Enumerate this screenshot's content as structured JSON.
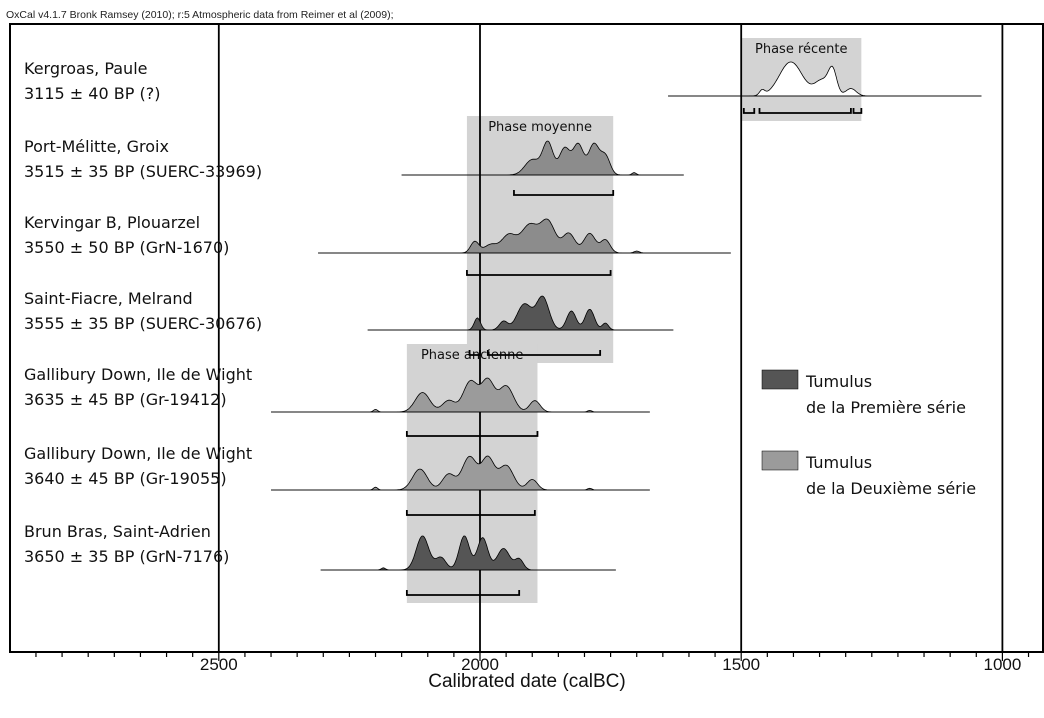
{
  "chart_data": {
    "type": "area",
    "credit": "OxCal v4.1.7 Bronk Ramsey (2010); r:5 Atmospheric data from Reimer et al (2009);",
    "xlabel": "Calibrated date (calBC)",
    "xlim": [
      2900,
      900
    ],
    "x_reversed": true,
    "major_ticks": [
      "2500",
      "2000",
      "1500",
      "1000"
    ],
    "minor_tick_step": 50,
    "grid": "vertical lines at major ticks",
    "phases": [
      {
        "label": "Phase récente",
        "from": 1500,
        "to": 1270
      },
      {
        "label": "Phase moyenne",
        "from": 2025,
        "to": 1745
      },
      {
        "label": "Phase ancienne",
        "from": 2140,
        "to": 1890
      }
    ],
    "legend": {
      "placement": "right",
      "items": [
        {
          "line1": "Tumulus",
          "line2": "de la Première série",
          "color": "#555555"
        },
        {
          "line1": "Tumulus",
          "line2": "de la Deuxième série",
          "color": "#9b9b9b"
        }
      ]
    },
    "series": [
      {
        "site": "Kergroas, Paule",
        "date": "3115 ± 40 BP (?)",
        "fill": "#ffffff",
        "range": [
          1640,
          1040
        ],
        "peaks": [
          [
            1460,
            5,
            0.15
          ],
          [
            1405,
            22,
            1.0
          ],
          [
            1345,
            14,
            0.45
          ],
          [
            1325,
            8,
            0.7
          ],
          [
            1290,
            10,
            0.22
          ]
        ],
        "hpd": [
          [
            1495,
            1475
          ],
          [
            1465,
            1290
          ],
          [
            1285,
            1270
          ]
        ]
      },
      {
        "site": "Port-Mélitte, Groix",
        "date": "3515 ± 35 BP (SUERC-33969)",
        "fill": "#8c8c8c",
        "range": [
          2150,
          1610
        ],
        "peaks": [
          [
            1900,
            14,
            0.45
          ],
          [
            1870,
            10,
            0.95
          ],
          [
            1838,
            10,
            0.78
          ],
          [
            1812,
            10,
            0.9
          ],
          [
            1782,
            10,
            0.9
          ],
          [
            1760,
            9,
            0.55
          ],
          [
            1705,
            4,
            0.07
          ]
        ],
        "hpd": [
          [
            1935,
            1745
          ]
        ]
      },
      {
        "site": "Kervingar B, Plouarzel",
        "date": "3550 ± 50 BP (GrN-1670)",
        "fill": "#8c8c8c",
        "range": [
          2310,
          1520
        ],
        "peaks": [
          [
            2010,
            8,
            0.35
          ],
          [
            1980,
            12,
            0.25
          ],
          [
            1945,
            14,
            0.55
          ],
          [
            1905,
            16,
            0.85
          ],
          [
            1870,
            14,
            0.95
          ],
          [
            1830,
            12,
            0.6
          ],
          [
            1790,
            11,
            0.6
          ],
          [
            1760,
            9,
            0.4
          ],
          [
            1700,
            5,
            0.06
          ]
        ],
        "hpd": [
          [
            2025,
            1750
          ]
        ]
      },
      {
        "site": "Saint-Fiacre, Melrand",
        "date": "3555 ± 35 BP (SUERC-30676)",
        "fill": "#555555",
        "range": [
          2215,
          1630
        ],
        "peaks": [
          [
            2005,
            6,
            0.35
          ],
          [
            1955,
            8,
            0.25
          ],
          [
            1915,
            14,
            0.75
          ],
          [
            1880,
            12,
            0.95
          ],
          [
            1825,
            9,
            0.55
          ],
          [
            1790,
            9,
            0.6
          ],
          [
            1760,
            6,
            0.2
          ]
        ],
        "hpd": [
          [
            2020,
            2000
          ],
          [
            1985,
            1770
          ]
        ]
      },
      {
        "site": "Gallibury Down, Ile de Wight",
        "date": "3635 ± 45 BP (Gr-19412)",
        "fill": "#9b9b9b",
        "range": [
          2400,
          1675
        ],
        "peaks": [
          [
            2200,
            4,
            0.08
          ],
          [
            2110,
            14,
            0.6
          ],
          [
            2060,
            12,
            0.35
          ],
          [
            2018,
            14,
            0.95
          ],
          [
            1985,
            12,
            0.95
          ],
          [
            1950,
            14,
            0.8
          ],
          [
            1895,
            10,
            0.35
          ],
          [
            1790,
            4,
            0.05
          ]
        ],
        "hpd": [
          [
            2140,
            1890
          ]
        ]
      },
      {
        "site": "Gallibury Down, Ile de Wight",
        "date": "3640 ± 45 BP (Gr-19055)",
        "fill": "#9b9b9b",
        "range": [
          2400,
          1675
        ],
        "peaks": [
          [
            2200,
            4,
            0.08
          ],
          [
            2115,
            14,
            0.6
          ],
          [
            2060,
            12,
            0.45
          ],
          [
            2020,
            14,
            0.95
          ],
          [
            1985,
            12,
            0.9
          ],
          [
            1950,
            14,
            0.7
          ],
          [
            1900,
            10,
            0.3
          ],
          [
            1790,
            4,
            0.05
          ]
        ],
        "hpd": [
          [
            2140,
            1895
          ]
        ]
      },
      {
        "site": "Brun Bras, Saint-Adrien",
        "date": "3650 ± 35 BP (GrN-7176)",
        "fill": "#555555",
        "range": [
          2305,
          1740
        ],
        "peaks": [
          [
            2185,
            4,
            0.06
          ],
          [
            2110,
            12,
            0.95
          ],
          [
            2075,
            10,
            0.35
          ],
          [
            2030,
            10,
            0.95
          ],
          [
            1995,
            10,
            0.9
          ],
          [
            1955,
            12,
            0.6
          ],
          [
            1925,
            8,
            0.3
          ]
        ],
        "hpd": [
          [
            2140,
            1925
          ]
        ]
      }
    ]
  }
}
